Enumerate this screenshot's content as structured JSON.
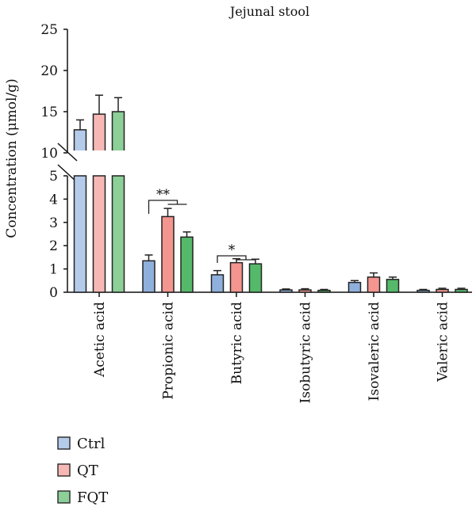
{
  "chart_data": {
    "type": "bar",
    "title": "Jejunal stool",
    "xlabel": "",
    "ylabel": "Concentration (μmol/g)",
    "ylim": [
      0,
      25
    ],
    "axis_break": [
      5,
      10
    ],
    "yticks_lower": [
      0,
      1,
      2,
      3,
      4,
      5
    ],
    "yticks_upper": [
      10,
      15,
      20,
      25
    ],
    "categories": [
      "Acetic acid",
      "Propionic acid",
      "Butyric acid",
      "Isobutyric acid",
      "Isovaleric acid",
      "Valeric acid"
    ],
    "series": [
      {
        "name": "Ctrl",
        "color": "#8fb0dc",
        "light_color": "#b4cbea",
        "values": [
          12.8,
          1.35,
          0.75,
          0.1,
          0.42,
          0.08
        ],
        "errors": [
          1.2,
          0.25,
          0.18,
          0.04,
          0.08,
          0.04
        ]
      },
      {
        "name": "QT",
        "color": "#f4958f",
        "light_color": "#f7b8b5",
        "values": [
          14.7,
          3.25,
          1.27,
          0.1,
          0.65,
          0.12
        ],
        "errors": [
          2.3,
          0.35,
          0.17,
          0.05,
          0.18,
          0.05
        ]
      },
      {
        "name": "FQT",
        "color": "#55b96a",
        "light_color": "#8ccf97",
        "values": [
          15.0,
          2.37,
          1.22,
          0.08,
          0.55,
          0.12
        ],
        "errors": [
          1.7,
          0.22,
          0.2,
          0.04,
          0.1,
          0.05
        ]
      }
    ],
    "annotations": [
      {
        "text": "**",
        "category": "Propionic acid",
        "comparison": "Ctrl vs QT/FQT"
      },
      {
        "text": "*",
        "category": "Butyric acid",
        "comparison": "Ctrl vs QT/FQT"
      }
    ],
    "legend_position": "bottom-left",
    "grid": false
  }
}
